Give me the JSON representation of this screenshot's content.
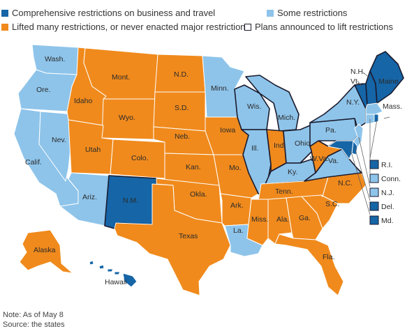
{
  "colors": {
    "comprehensive": "#1565a7",
    "some": "#8ec4ea",
    "lifted": "#f08a1c",
    "plans": "#ffffff",
    "border": "#ffffff",
    "outline": "#1b1b2e"
  },
  "legend": [
    {
      "key": "comprehensive",
      "label": "Comprehensive restrictions on business and travel"
    },
    {
      "key": "some",
      "label": "Some restrictions"
    },
    {
      "key": "lifted",
      "label": "Lifted many restrictions, or never enacted major restrictions"
    },
    {
      "key": "plans",
      "label": "Plans announced to lift restrictions"
    }
  ],
  "states": [
    {
      "label": "Wash.",
      "status": "some"
    },
    {
      "label": "Ore.",
      "status": "some"
    },
    {
      "label": "Calif.",
      "status": "some"
    },
    {
      "label": "Nev.",
      "status": "some"
    },
    {
      "label": "Idaho",
      "status": "lifted"
    },
    {
      "label": "Mont.",
      "status": "lifted"
    },
    {
      "label": "Wyo.",
      "status": "lifted"
    },
    {
      "label": "Utah",
      "status": "lifted"
    },
    {
      "label": "Colo.",
      "status": "lifted"
    },
    {
      "label": "Ariz.",
      "status": "some"
    },
    {
      "label": "N.M.",
      "status": "comprehensive",
      "plans": true
    },
    {
      "label": "N.D.",
      "status": "lifted"
    },
    {
      "label": "S.D.",
      "status": "lifted"
    },
    {
      "label": "Neb.",
      "status": "lifted"
    },
    {
      "label": "Kan.",
      "status": "lifted"
    },
    {
      "label": "Okla.",
      "status": "lifted"
    },
    {
      "label": "Texas",
      "status": "lifted"
    },
    {
      "label": "Minn.",
      "status": "some"
    },
    {
      "label": "Iowa",
      "status": "lifted"
    },
    {
      "label": "Mo.",
      "status": "lifted"
    },
    {
      "label": "Ark.",
      "status": "lifted"
    },
    {
      "label": "La.",
      "status": "some"
    },
    {
      "label": "Wis.",
      "status": "some",
      "plans": true
    },
    {
      "label": "Ill.",
      "status": "some",
      "plans": true
    },
    {
      "label": "Mich.",
      "status": "some",
      "plans": true
    },
    {
      "label": "Ind.",
      "status": "lifted",
      "plans": true
    },
    {
      "label": "Ohio",
      "status": "some",
      "plans": true
    },
    {
      "label": "Ky.",
      "status": "some",
      "plans": true
    },
    {
      "label": "Tenn.",
      "status": "lifted"
    },
    {
      "label": "Miss.",
      "status": "lifted"
    },
    {
      "label": "Ala.",
      "status": "lifted"
    },
    {
      "label": "Ga.",
      "status": "lifted"
    },
    {
      "label": "Fla.",
      "status": "lifted"
    },
    {
      "label": "S.C.",
      "status": "lifted"
    },
    {
      "label": "N.C.",
      "status": "lifted"
    },
    {
      "label": "Va.",
      "status": "some",
      "plans": true
    },
    {
      "label": "W.Va.",
      "status": "lifted",
      "plans": true
    },
    {
      "label": "Pa.",
      "status": "some",
      "plans": true
    },
    {
      "label": "N.Y.",
      "status": "some",
      "plans": true
    },
    {
      "label": "Vt.",
      "status": "comprehensive",
      "plans": true
    },
    {
      "label": "N.H.",
      "status": "comprehensive",
      "plans": true
    },
    {
      "label": "Maine",
      "status": "comprehensive",
      "plans": true
    },
    {
      "label": "Mass.",
      "status": "some"
    },
    {
      "label": "R.I.",
      "status": "comprehensive"
    },
    {
      "label": "Conn.",
      "status": "some"
    },
    {
      "label": "N.J.",
      "status": "some"
    },
    {
      "label": "Del.",
      "status": "comprehensive"
    },
    {
      "label": "Md.",
      "status": "comprehensive"
    },
    {
      "label": "Alaska",
      "status": "lifted"
    },
    {
      "label": "Hawaii",
      "status": "comprehensive"
    }
  ],
  "notes": [
    "Note: As of May 8",
    "Source: the states"
  ]
}
